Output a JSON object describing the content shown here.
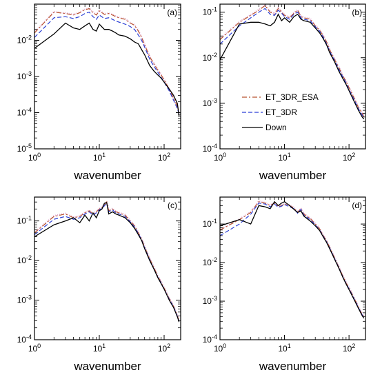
{
  "colors": {
    "ET_3DR_ESA": "#b8522e",
    "ET_3DR": "#2b3fd6",
    "Down": "#000000",
    "pink_overlay": "#e0a8d0"
  },
  "chart_data": [
    {
      "type": "line",
      "panel_label": "(a)",
      "xscale": "log",
      "yscale": "log",
      "xlim": [
        1,
        180
      ],
      "ylim": [
        1e-05,
        0.1
      ],
      "xticks": [
        1,
        10,
        100
      ],
      "xtick_labels": [
        "10^0",
        "10^1",
        "10^2"
      ],
      "yticks": [
        1e-05,
        0.0001,
        0.001,
        0.01
      ],
      "ytick_labels": [
        "10^-5",
        "10^-4",
        "10^-3",
        "10^-2"
      ],
      "xlabel": "wavenumber",
      "ylabel": "",
      "grid": false,
      "series": [
        {
          "name": "ET_3DR_ESA",
          "style": "dashdot",
          "x": [
            1,
            2,
            3,
            4,
            5,
            6,
            7,
            8,
            9,
            10,
            12,
            14,
            16,
            18,
            20,
            25,
            30,
            35,
            40,
            45,
            50,
            60,
            70,
            80,
            90,
            100,
            120,
            140,
            160,
            170
          ],
          "y": [
            0.016,
            0.06,
            0.055,
            0.05,
            0.058,
            0.07,
            0.075,
            0.058,
            0.05,
            0.065,
            0.052,
            0.055,
            0.05,
            0.045,
            0.042,
            0.038,
            0.03,
            0.026,
            0.018,
            0.012,
            0.0075,
            0.0035,
            0.0022,
            0.0015,
            0.0011,
            0.0008,
            0.00045,
            0.00025,
            0.00015,
            0.0001
          ]
        },
        {
          "name": "ET_3DR",
          "style": "dashed",
          "x": [
            1,
            2,
            3,
            4,
            5,
            6,
            7,
            8,
            9,
            10,
            12,
            14,
            16,
            18,
            20,
            25,
            30,
            35,
            40,
            45,
            50,
            60,
            70,
            80,
            90,
            100,
            120,
            140,
            160,
            170
          ],
          "y": [
            0.012,
            0.042,
            0.045,
            0.04,
            0.045,
            0.055,
            0.06,
            0.045,
            0.038,
            0.05,
            0.04,
            0.042,
            0.038,
            0.034,
            0.032,
            0.028,
            0.024,
            0.02,
            0.014,
            0.01,
            0.0065,
            0.003,
            0.0019,
            0.0013,
            0.00095,
            0.0007,
            0.0004,
            0.00022,
            0.00013,
            9e-05
          ]
        },
        {
          "name": "Down",
          "style": "solid",
          "x": [
            1,
            2,
            3,
            4,
            5,
            6,
            7,
            8,
            9,
            10,
            12,
            14,
            16,
            18,
            20,
            25,
            30,
            35,
            40,
            45,
            50,
            60,
            70,
            80,
            90,
            100,
            120,
            140,
            160,
            170
          ],
          "y": [
            0.006,
            0.015,
            0.03,
            0.022,
            0.02,
            0.025,
            0.03,
            0.02,
            0.018,
            0.028,
            0.02,
            0.02,
            0.018,
            0.016,
            0.014,
            0.013,
            0.011,
            0.009,
            0.008,
            0.0055,
            0.004,
            0.002,
            0.0014,
            0.0011,
            0.0009,
            0.0007,
            0.00045,
            0.0003,
            0.00018,
            8e-05
          ]
        }
      ]
    },
    {
      "type": "line",
      "panel_label": "(b)",
      "xscale": "log",
      "yscale": "log",
      "xlim": [
        1,
        180
      ],
      "ylim": [
        0.0001,
        0.15
      ],
      "xticks": [
        1,
        10,
        100
      ],
      "xtick_labels": [
        "10^0",
        "10^1",
        "10^2"
      ],
      "yticks": [
        0.0001,
        0.001,
        0.01,
        0.1
      ],
      "ytick_labels": [
        "10^-4",
        "10^-3",
        "10^-2",
        "10^-1"
      ],
      "xlabel": "wavenumber",
      "ylabel": "",
      "grid": false,
      "legend": {
        "position": "center-left",
        "entries": [
          "ET_3DR_ESA",
          "ET_3DR",
          "Down"
        ]
      },
      "series": [
        {
          "name": "ET_3DR_ESA",
          "style": "dashdot",
          "x": [
            1,
            2,
            3,
            4,
            5,
            6,
            7,
            8,
            9,
            10,
            12,
            14,
            16,
            18,
            20,
            25,
            30,
            35,
            40,
            45,
            50,
            60,
            70,
            80,
            90,
            100,
            120,
            140,
            160,
            170
          ],
          "y": [
            0.025,
            0.06,
            0.085,
            0.11,
            0.14,
            0.1,
            0.09,
            0.12,
            0.1,
            0.085,
            0.075,
            0.095,
            0.11,
            0.08,
            0.075,
            0.07,
            0.05,
            0.04,
            0.03,
            0.022,
            0.015,
            0.009,
            0.006,
            0.004,
            0.003,
            0.0022,
            0.0013,
            0.0008,
            0.0006,
            0.0005
          ]
        },
        {
          "name": "ET_3DR",
          "style": "dashed",
          "x": [
            1,
            2,
            3,
            4,
            5,
            6,
            7,
            8,
            9,
            10,
            12,
            14,
            16,
            18,
            20,
            25,
            30,
            35,
            40,
            45,
            50,
            60,
            70,
            80,
            90,
            100,
            120,
            140,
            160,
            170
          ],
          "y": [
            0.02,
            0.05,
            0.075,
            0.1,
            0.12,
            0.09,
            0.085,
            0.11,
            0.095,
            0.08,
            0.07,
            0.09,
            0.1,
            0.075,
            0.07,
            0.065,
            0.048,
            0.038,
            0.028,
            0.02,
            0.014,
            0.0085,
            0.0055,
            0.0038,
            0.0028,
            0.002,
            0.0012,
            0.00075,
            0.00055,
            0.00048
          ]
        },
        {
          "name": "Down",
          "style": "solid",
          "x": [
            1,
            2,
            3,
            4,
            5,
            6,
            7,
            8,
            9,
            10,
            12,
            14,
            16,
            18,
            20,
            25,
            30,
            35,
            40,
            45,
            50,
            60,
            70,
            80,
            90,
            100,
            120,
            140,
            160,
            170
          ],
          "y": [
            0.009,
            0.055,
            0.06,
            0.06,
            0.055,
            0.05,
            0.06,
            0.09,
            0.065,
            0.075,
            0.06,
            0.08,
            0.09,
            0.07,
            0.065,
            0.06,
            0.045,
            0.035,
            0.026,
            0.019,
            0.013,
            0.008,
            0.005,
            0.0035,
            0.0026,
            0.0019,
            0.0011,
            0.0007,
            0.0005,
            0.00045
          ]
        }
      ]
    },
    {
      "type": "line",
      "panel_label": "(c)",
      "xscale": "log",
      "yscale": "log",
      "xlim": [
        1,
        180
      ],
      "ylim": [
        0.0001,
        0.4
      ],
      "xticks": [
        1,
        10,
        100
      ],
      "xtick_labels": [
        "10^0",
        "10^1",
        "10^2"
      ],
      "yticks": [
        0.0001,
        0.001,
        0.01,
        0.1
      ],
      "ytick_labels": [
        "10^-4",
        "10^-3",
        "10^-2",
        "10^-1"
      ],
      "xlabel": "wavenumber",
      "ylabel": "",
      "grid": false,
      "series": [
        {
          "name": "ET_3DR_ESA",
          "style": "dashdot",
          "x": [
            1,
            2,
            3,
            4,
            5,
            6,
            7,
            8,
            9,
            10,
            11,
            12,
            13,
            14,
            16,
            18,
            20,
            25,
            30,
            35,
            40,
            45,
            50,
            60,
            70,
            80,
            90,
            100,
            120,
            140,
            160,
            170
          ],
          "y": [
            0.05,
            0.13,
            0.15,
            0.12,
            0.13,
            0.16,
            0.18,
            0.15,
            0.17,
            0.2,
            0.22,
            0.25,
            0.3,
            0.18,
            0.2,
            0.17,
            0.16,
            0.14,
            0.1,
            0.075,
            0.05,
            0.035,
            0.022,
            0.011,
            0.0065,
            0.004,
            0.0028,
            0.002,
            0.0011,
            0.0007,
            0.0004,
            0.0003
          ]
        },
        {
          "name": "ET_3DR",
          "style": "dashed",
          "x": [
            1,
            2,
            3,
            4,
            5,
            6,
            7,
            8,
            9,
            10,
            11,
            12,
            13,
            14,
            16,
            18,
            20,
            25,
            30,
            35,
            40,
            45,
            50,
            60,
            70,
            80,
            90,
            100,
            120,
            140,
            160,
            170
          ],
          "y": [
            0.045,
            0.11,
            0.13,
            0.11,
            0.12,
            0.15,
            0.17,
            0.14,
            0.16,
            0.19,
            0.21,
            0.24,
            0.28,
            0.17,
            0.19,
            0.16,
            0.15,
            0.13,
            0.095,
            0.07,
            0.048,
            0.033,
            0.021,
            0.0105,
            0.006,
            0.0038,
            0.0027,
            0.0019,
            0.00105,
            0.00068,
            0.00039,
            0.00029
          ]
        },
        {
          "name": "Down",
          "style": "solid",
          "x": [
            1,
            2,
            3,
            4,
            5,
            6,
            7,
            8,
            9,
            10,
            11,
            12,
            13,
            14,
            16,
            18,
            20,
            25,
            30,
            35,
            40,
            45,
            50,
            60,
            70,
            80,
            90,
            100,
            120,
            140,
            160,
            170
          ],
          "y": [
            0.04,
            0.08,
            0.1,
            0.12,
            0.09,
            0.14,
            0.1,
            0.16,
            0.12,
            0.18,
            0.2,
            0.28,
            0.29,
            0.15,
            0.17,
            0.15,
            0.14,
            0.12,
            0.09,
            0.065,
            0.045,
            0.032,
            0.02,
            0.01,
            0.006,
            0.0037,
            0.0026,
            0.0019,
            0.001,
            0.00065,
            0.00038,
            0.00028
          ]
        }
      ]
    },
    {
      "type": "line",
      "panel_label": "(d)",
      "xscale": "log",
      "yscale": "log",
      "xlim": [
        1,
        180
      ],
      "ylim": [
        0.0001,
        0.5
      ],
      "xticks": [
        1,
        10,
        100
      ],
      "xtick_labels": [
        "10^0",
        "10^1",
        "10^2"
      ],
      "yticks": [
        0.0001,
        0.001,
        0.01,
        0.1
      ],
      "ytick_labels": [
        "10^-4",
        "10^-3",
        "10^-2",
        "10^-1"
      ],
      "xlabel": "wavenumber",
      "ylabel": "",
      "grid": false,
      "series": [
        {
          "name": "ET_3DR_ESA",
          "style": "dashdot",
          "x": [
            1,
            2,
            3,
            4,
            5,
            6,
            7,
            8,
            9,
            10,
            12,
            14,
            16,
            18,
            20,
            25,
            30,
            35,
            40,
            45,
            50,
            60,
            70,
            80,
            90,
            100,
            120,
            140,
            160,
            170
          ],
          "y": [
            0.07,
            0.13,
            0.2,
            0.38,
            0.35,
            0.3,
            0.35,
            0.28,
            0.3,
            0.33,
            0.3,
            0.26,
            0.2,
            0.25,
            0.18,
            0.14,
            0.1,
            0.075,
            0.05,
            0.036,
            0.025,
            0.013,
            0.0075,
            0.0045,
            0.003,
            0.0022,
            0.0012,
            0.0007,
            0.00045,
            0.0004
          ]
        },
        {
          "name": "ET_3DR",
          "style": "dashed",
          "x": [
            1,
            2,
            3,
            4,
            5,
            6,
            7,
            8,
            9,
            10,
            12,
            14,
            16,
            18,
            20,
            25,
            30,
            35,
            40,
            45,
            50,
            60,
            70,
            80,
            90,
            100,
            120,
            140,
            160,
            170
          ],
          "y": [
            0.05,
            0.1,
            0.18,
            0.35,
            0.33,
            0.28,
            0.33,
            0.27,
            0.29,
            0.32,
            0.28,
            0.25,
            0.19,
            0.24,
            0.17,
            0.13,
            0.095,
            0.07,
            0.048,
            0.034,
            0.024,
            0.0125,
            0.0072,
            0.0043,
            0.0029,
            0.0021,
            0.00115,
            0.00068,
            0.00044,
            0.00038
          ]
        },
        {
          "name": "Down",
          "style": "solid",
          "x": [
            1,
            2,
            3,
            4,
            5,
            6,
            7,
            8,
            9,
            10,
            12,
            14,
            16,
            18,
            20,
            25,
            30,
            35,
            40,
            45,
            50,
            60,
            70,
            80,
            90,
            100,
            120,
            140,
            160,
            170
          ],
          "y": [
            0.09,
            0.13,
            0.1,
            0.3,
            0.28,
            0.25,
            0.38,
            0.3,
            0.35,
            0.38,
            0.3,
            0.24,
            0.2,
            0.22,
            0.16,
            0.12,
            0.09,
            0.068,
            0.046,
            0.033,
            0.023,
            0.012,
            0.007,
            0.0042,
            0.0028,
            0.002,
            0.0011,
            0.00065,
            0.00042,
            0.00036
          ]
        }
      ]
    }
  ]
}
